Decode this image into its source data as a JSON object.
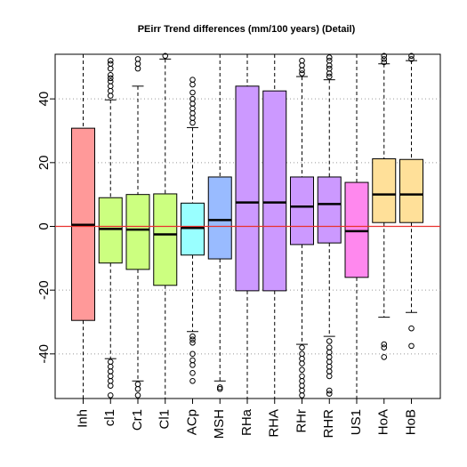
{
  "chart_data": {
    "type": "boxplot",
    "title": "PEirr Trend differences (mm/100 years) (Detail)",
    "xlabel": "",
    "ylabel": "",
    "ylim": [
      -54,
      54
    ],
    "yticks": [
      -40,
      -20,
      0,
      20,
      40
    ],
    "grid": true,
    "reference_line": {
      "y": 0,
      "color": "#e8322e"
    },
    "boxes": [
      {
        "label": "Inh",
        "q1": -29.5,
        "median": 0.5,
        "q3": 30.8,
        "whisker_low": null,
        "whisker_high": null,
        "color": "#ff9999",
        "outliers": []
      },
      {
        "label": "cl1",
        "q1": -11.5,
        "median": -0.8,
        "q3": 9.0,
        "whisker_low": -41.5,
        "whisker_high": 39.7,
        "color": "#ccff80",
        "outliers": [
          -42.5,
          -44.0,
          -45.5,
          -47.0,
          -48.5,
          -50.0,
          -53.0,
          41.0,
          42.5,
          44.0,
          45.5,
          46.5,
          47.5,
          49.5,
          51.0,
          52.0
        ]
      },
      {
        "label": "Cr1",
        "q1": -13.5,
        "median": -1.0,
        "q3": 10.0,
        "whisker_low": -48.5,
        "whisker_high": 44.0,
        "color": "#ccff80",
        "outliers": [
          -49.5,
          -51.0,
          -53.0,
          49.5,
          51.0,
          52.5
        ]
      },
      {
        "label": "Cl1",
        "q1": -18.5,
        "median": -2.5,
        "q3": 10.2,
        "whisker_low": null,
        "whisker_high": 52.5,
        "color": "#ccff80",
        "outliers": [
          53.5
        ]
      },
      {
        "label": "ACp",
        "q1": -9.0,
        "median": -0.5,
        "q3": 7.3,
        "whisker_low": -33.0,
        "whisker_high": 31.0,
        "color": "#99ffff",
        "outliers": [
          -34.5,
          -35.5,
          -36.5,
          -40.0,
          -42.0,
          -43.5,
          -46.0,
          -48.5,
          32.5,
          34.0,
          35.5,
          37.0,
          38.5,
          40.0,
          42.0,
          44.5,
          46.0
        ]
      },
      {
        "label": "MSH",
        "q1": -10.2,
        "median": 2.0,
        "q3": 15.5,
        "whisker_low": -48.5,
        "whisker_high": null,
        "color": "#99bbff",
        "outliers": [
          -50.5,
          -51.0
        ]
      },
      {
        "label": "RHa",
        "q1": -20.2,
        "median": 7.5,
        "q3": 44.0,
        "whisker_low": null,
        "whisker_high": null,
        "color": "#cc99ff",
        "outliers": []
      },
      {
        "label": "RHA",
        "q1": -20.2,
        "median": 7.5,
        "q3": 42.5,
        "whisker_low": null,
        "whisker_high": null,
        "color": "#cc99ff",
        "outliers": []
      },
      {
        "label": "RHr",
        "q1": -5.7,
        "median": 6.2,
        "q3": 15.5,
        "whisker_low": -37.0,
        "whisker_high": 47.0,
        "color": "#cc99ff",
        "outliers": [
          -38.0,
          -40.0,
          -41.5,
          -43.0,
          -45.0,
          -47.0,
          -48.5,
          -50.0,
          -51.5,
          -53.0,
          48.0,
          49.0,
          50.5,
          52.0
        ]
      },
      {
        "label": "RHR",
        "q1": -5.2,
        "median": 7.0,
        "q3": 15.5,
        "whisker_low": -34.5,
        "whisker_high": 46.0,
        "color": "#cc99ff",
        "outliers": [
          -36.0,
          -38.0,
          -39.5,
          -41.0,
          -42.5,
          -44.0,
          -45.5,
          -47.0,
          -51.5,
          -52.5,
          47.0,
          48.0,
          49.5,
          50.5,
          52.0,
          53.0
        ]
      },
      {
        "label": "US1",
        "q1": -16.0,
        "median": -1.5,
        "q3": 13.8,
        "whisker_low": null,
        "whisker_high": null,
        "color": "#ff88ee",
        "outliers": []
      },
      {
        "label": "HoA",
        "q1": 1.2,
        "median": 10.0,
        "q3": 21.2,
        "whisker_low": -28.5,
        "whisker_high": 51.0,
        "color": "#ffe099",
        "outliers": [
          -37.0,
          -38.0,
          -41.0,
          51.5,
          52.5,
          53.5
        ]
      },
      {
        "label": "HoB",
        "q1": 1.2,
        "median": 10.0,
        "q3": 21.0,
        "whisker_low": -27.0,
        "whisker_high": 52.0,
        "color": "#ffe099",
        "outliers": [
          -32.0,
          -37.5,
          52.5,
          53.5
        ]
      }
    ]
  }
}
